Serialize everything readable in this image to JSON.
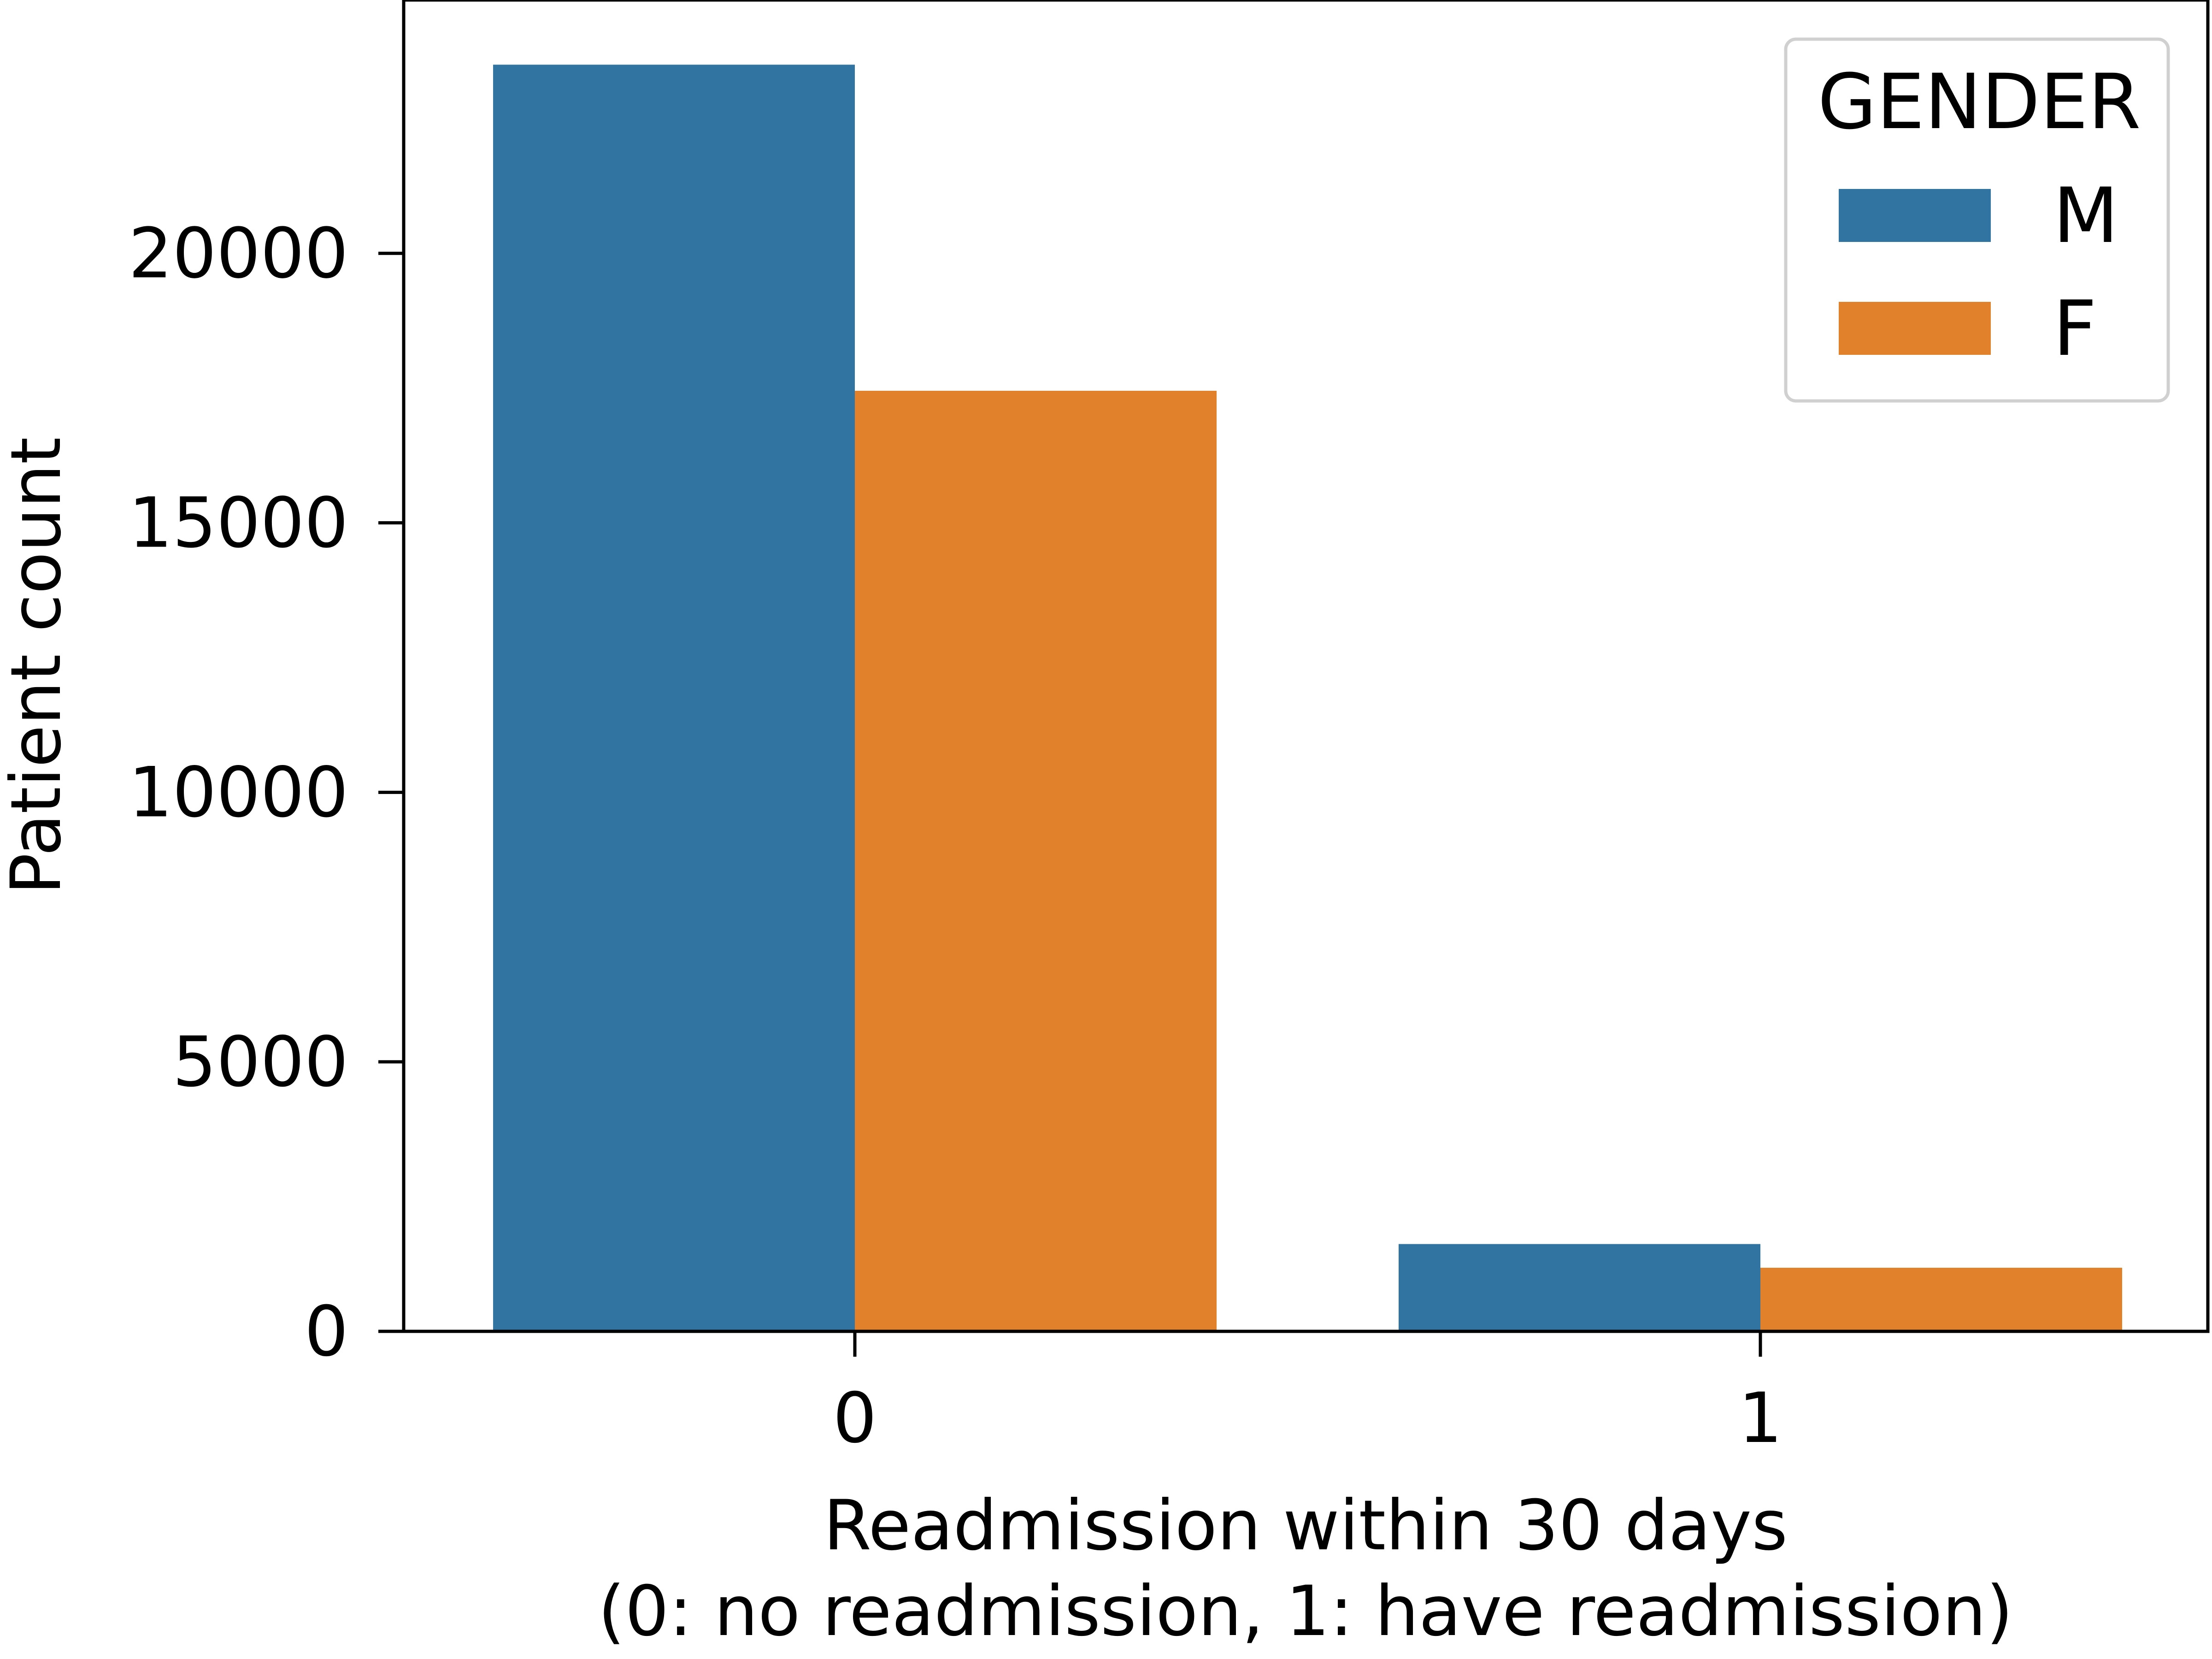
{
  "chart_data": {
    "type": "bar",
    "title": "",
    "xlabel_lines": [
      "Readmission within 30 days",
      "(0: no readmission, 1: have readmission)"
    ],
    "ylabel": "Patient count",
    "categories": [
      "0",
      "1"
    ],
    "series": [
      {
        "name": "M",
        "color": "#3274a1",
        "values": [
          23500,
          1620
        ]
      },
      {
        "name": "F",
        "color": "#e1812c",
        "values": [
          17450,
          1180
        ]
      }
    ],
    "yticks": [
      0,
      5000,
      10000,
      15000,
      20000
    ],
    "ytick_labels": [
      "0",
      "5000",
      "10000",
      "15000",
      "20000"
    ],
    "ylim": [
      0,
      24700
    ],
    "legend": {
      "title": "GENDER",
      "position": "top-right"
    },
    "grid": false
  }
}
